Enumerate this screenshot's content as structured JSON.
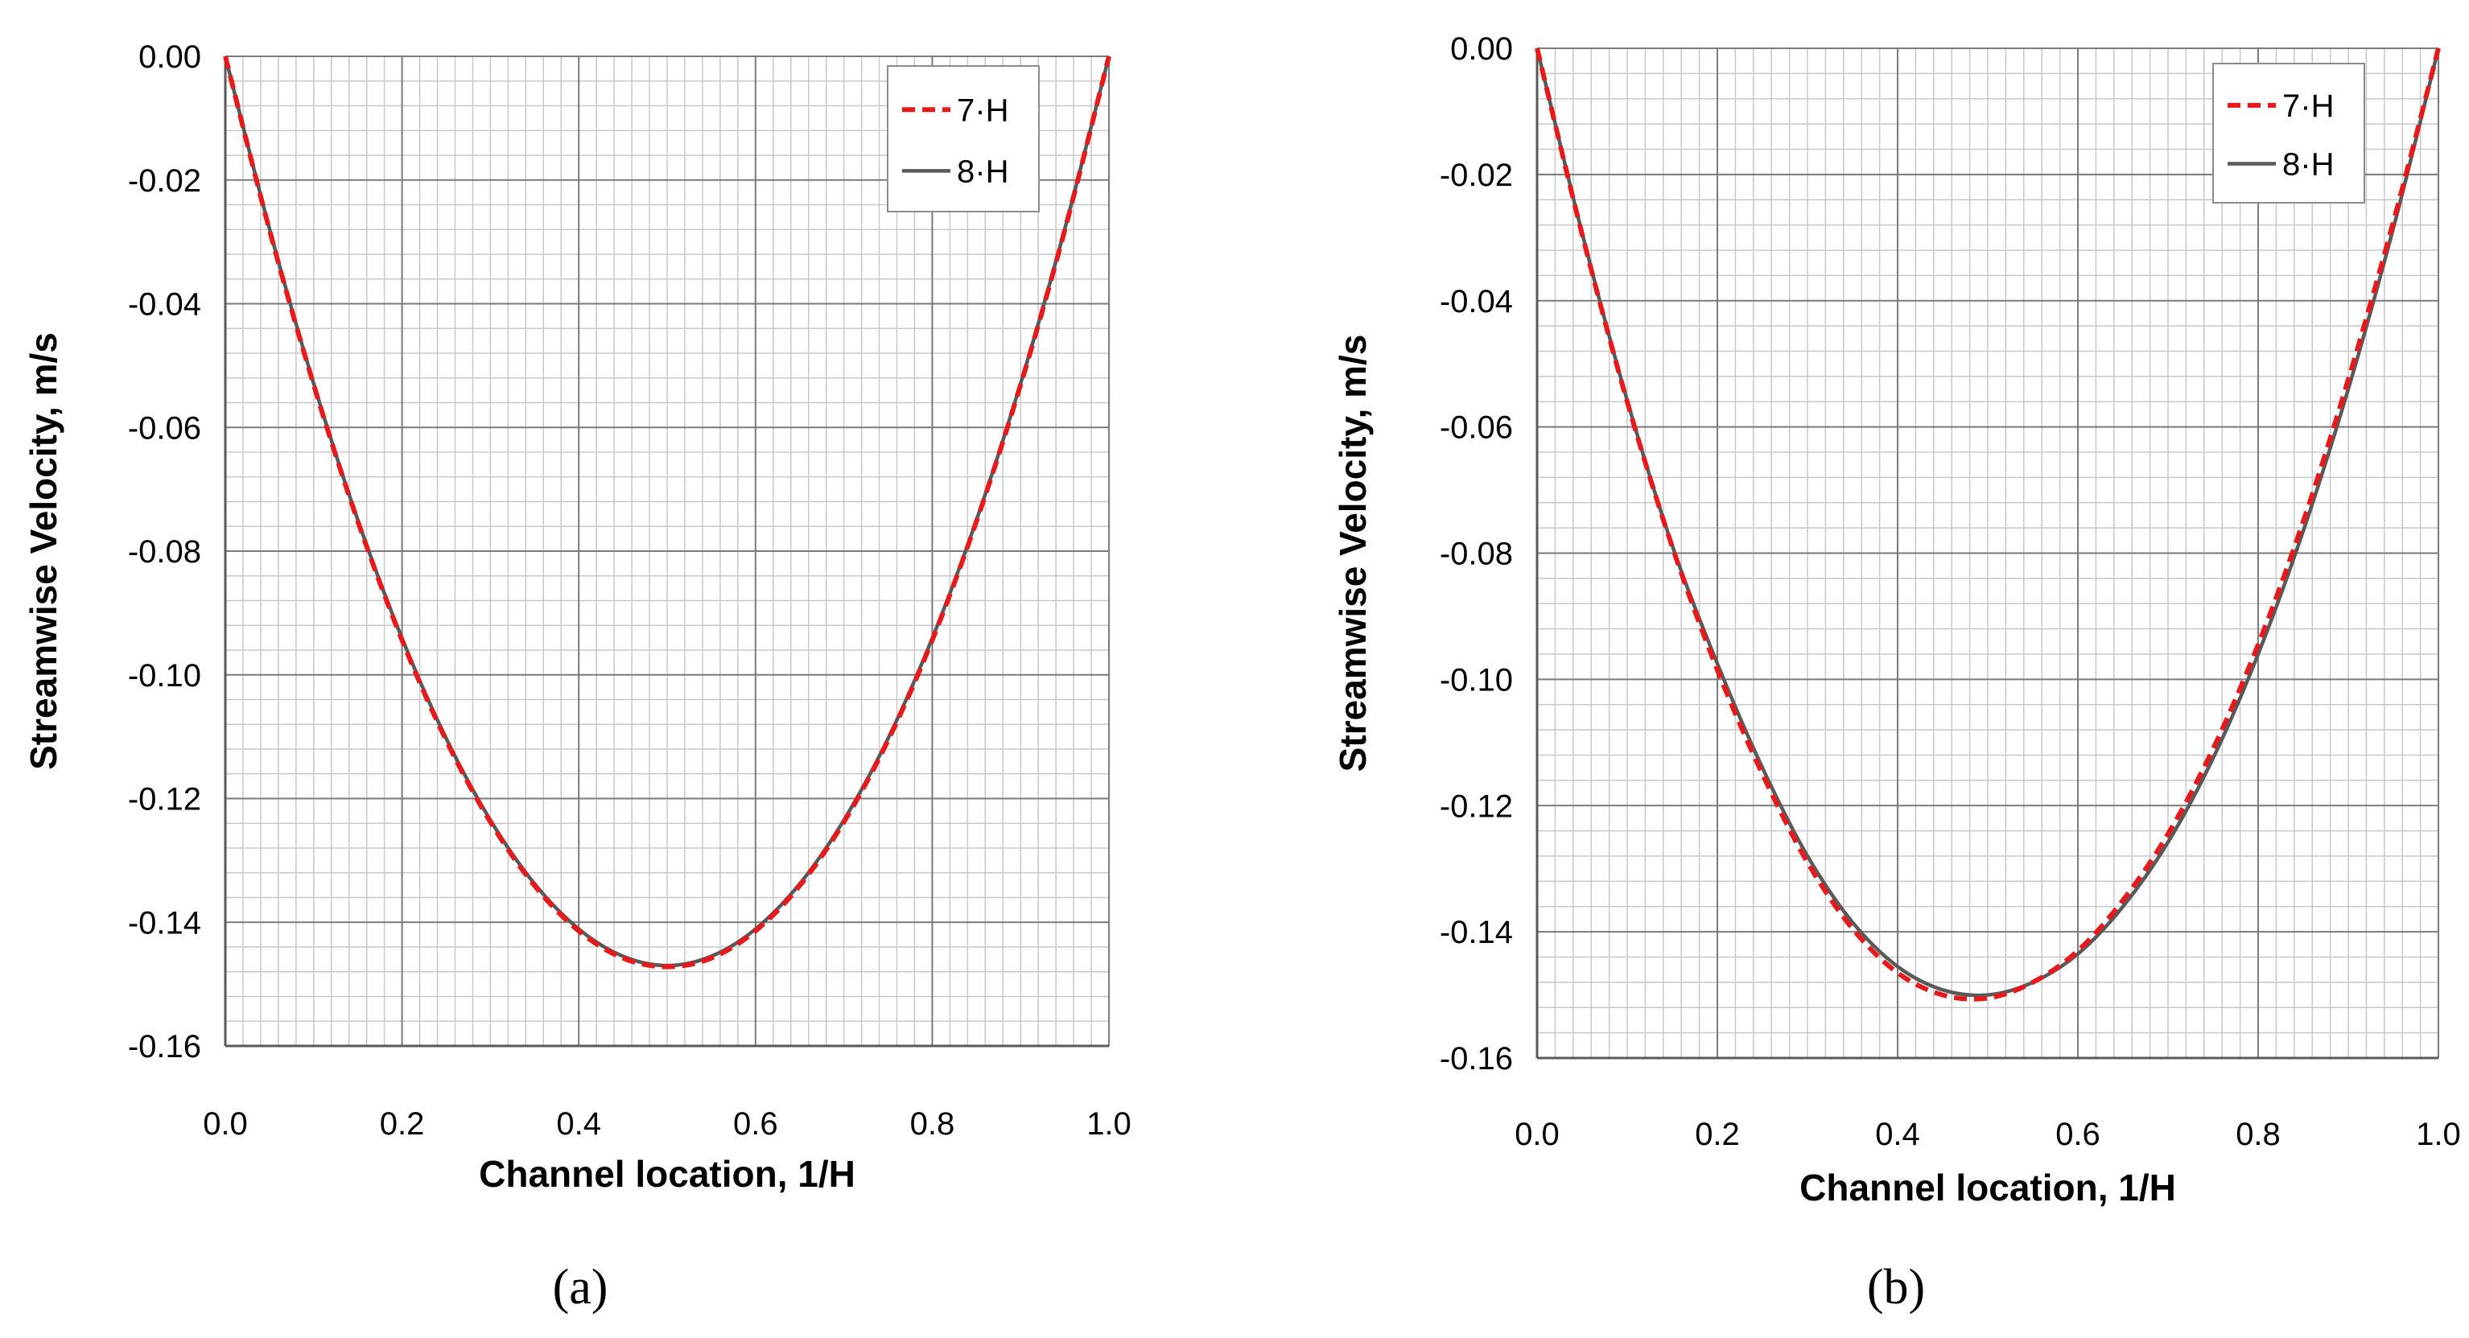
{
  "chart_data": [
    {
      "type": "line",
      "panel_label": "(a)",
      "xlabel": "Channel location, 1/H",
      "ylabel": "Streamwise Velocity, m/s",
      "xlim": [
        0.0,
        1.0
      ],
      "ylim": [
        -0.16,
        0.0
      ],
      "x_ticks": [
        "0.0",
        "0.2",
        "0.4",
        "0.6",
        "0.8",
        "1.0"
      ],
      "y_ticks": [
        "0.00",
        "-0.02",
        "-0.04",
        "-0.06",
        "-0.08",
        "-0.10",
        "-0.12",
        "-0.14",
        "-0.16"
      ],
      "grid": true,
      "legend": "top-right",
      "x": [
        0.0,
        0.05,
        0.1,
        0.15,
        0.2,
        0.25,
        0.3,
        0.35,
        0.4,
        0.45,
        0.5,
        0.55,
        0.6,
        0.65,
        0.7,
        0.75,
        0.8,
        0.85,
        0.9,
        0.95,
        1.0
      ],
      "series": [
        {
          "name": "7·H",
          "color": "#e8191b",
          "style": "dashed",
          "values": [
            0.0,
            -0.0281,
            -0.0531,
            -0.0752,
            -0.0944,
            -0.1106,
            -0.1238,
            -0.1341,
            -0.1414,
            -0.1458,
            -0.1472,
            -0.1458,
            -0.1414,
            -0.1341,
            -0.1238,
            -0.1106,
            -0.0944,
            -0.0752,
            -0.0531,
            -0.0281,
            0.0
          ]
        },
        {
          "name": "8·H",
          "color": "#595959",
          "style": "solid",
          "values": [
            0.0,
            -0.0279,
            -0.0529,
            -0.075,
            -0.0941,
            -0.1103,
            -0.1235,
            -0.1338,
            -0.1411,
            -0.1455,
            -0.147,
            -0.1455,
            -0.1411,
            -0.1338,
            -0.1235,
            -0.1103,
            -0.0941,
            -0.075,
            -0.0529,
            -0.0279,
            0.0
          ]
        }
      ]
    },
    {
      "type": "line",
      "panel_label": "(b)",
      "xlabel": "Channel location, 1/H",
      "ylabel": "Streamwise Velocity, m/s",
      "xlim": [
        0.0,
        1.0
      ],
      "ylim": [
        -0.16,
        0.0
      ],
      "x_ticks": [
        "0.0",
        "0.2",
        "0.4",
        "0.6",
        "0.8",
        "1.0"
      ],
      "y_ticks": [
        "0.00",
        "-0.02",
        "-0.04",
        "-0.06",
        "-0.08",
        "-0.10",
        "-0.12",
        "-0.14",
        "-0.16"
      ],
      "grid": true,
      "legend": "top-right",
      "x": [
        0.0,
        0.05,
        0.1,
        0.15,
        0.2,
        0.25,
        0.3,
        0.35,
        0.4,
        0.45,
        0.5,
        0.55,
        0.6,
        0.65,
        0.7,
        0.75,
        0.8,
        0.85,
        0.9,
        0.95,
        1.0
      ],
      "series": [
        {
          "name": "7·H",
          "color": "#e8191b",
          "style": "dashed",
          "values": [
            0.0,
            -0.0295,
            -0.056,
            -0.079,
            -0.0985,
            -0.115,
            -0.129,
            -0.1395,
            -0.1465,
            -0.15,
            -0.1505,
            -0.148,
            -0.143,
            -0.135,
            -0.1245,
            -0.111,
            -0.0945,
            -0.075,
            -0.0525,
            -0.0275,
            0.0
          ]
        },
        {
          "name": "8·H",
          "color": "#595959",
          "style": "solid",
          "values": [
            0.0,
            -0.0293,
            -0.0558,
            -0.0788,
            -0.0975,
            -0.114,
            -0.128,
            -0.1385,
            -0.1455,
            -0.1492,
            -0.15,
            -0.148,
            -0.1435,
            -0.136,
            -0.1258,
            -0.1125,
            -0.096,
            -0.0765,
            -0.054,
            -0.0285,
            0.0
          ]
        }
      ]
    }
  ]
}
